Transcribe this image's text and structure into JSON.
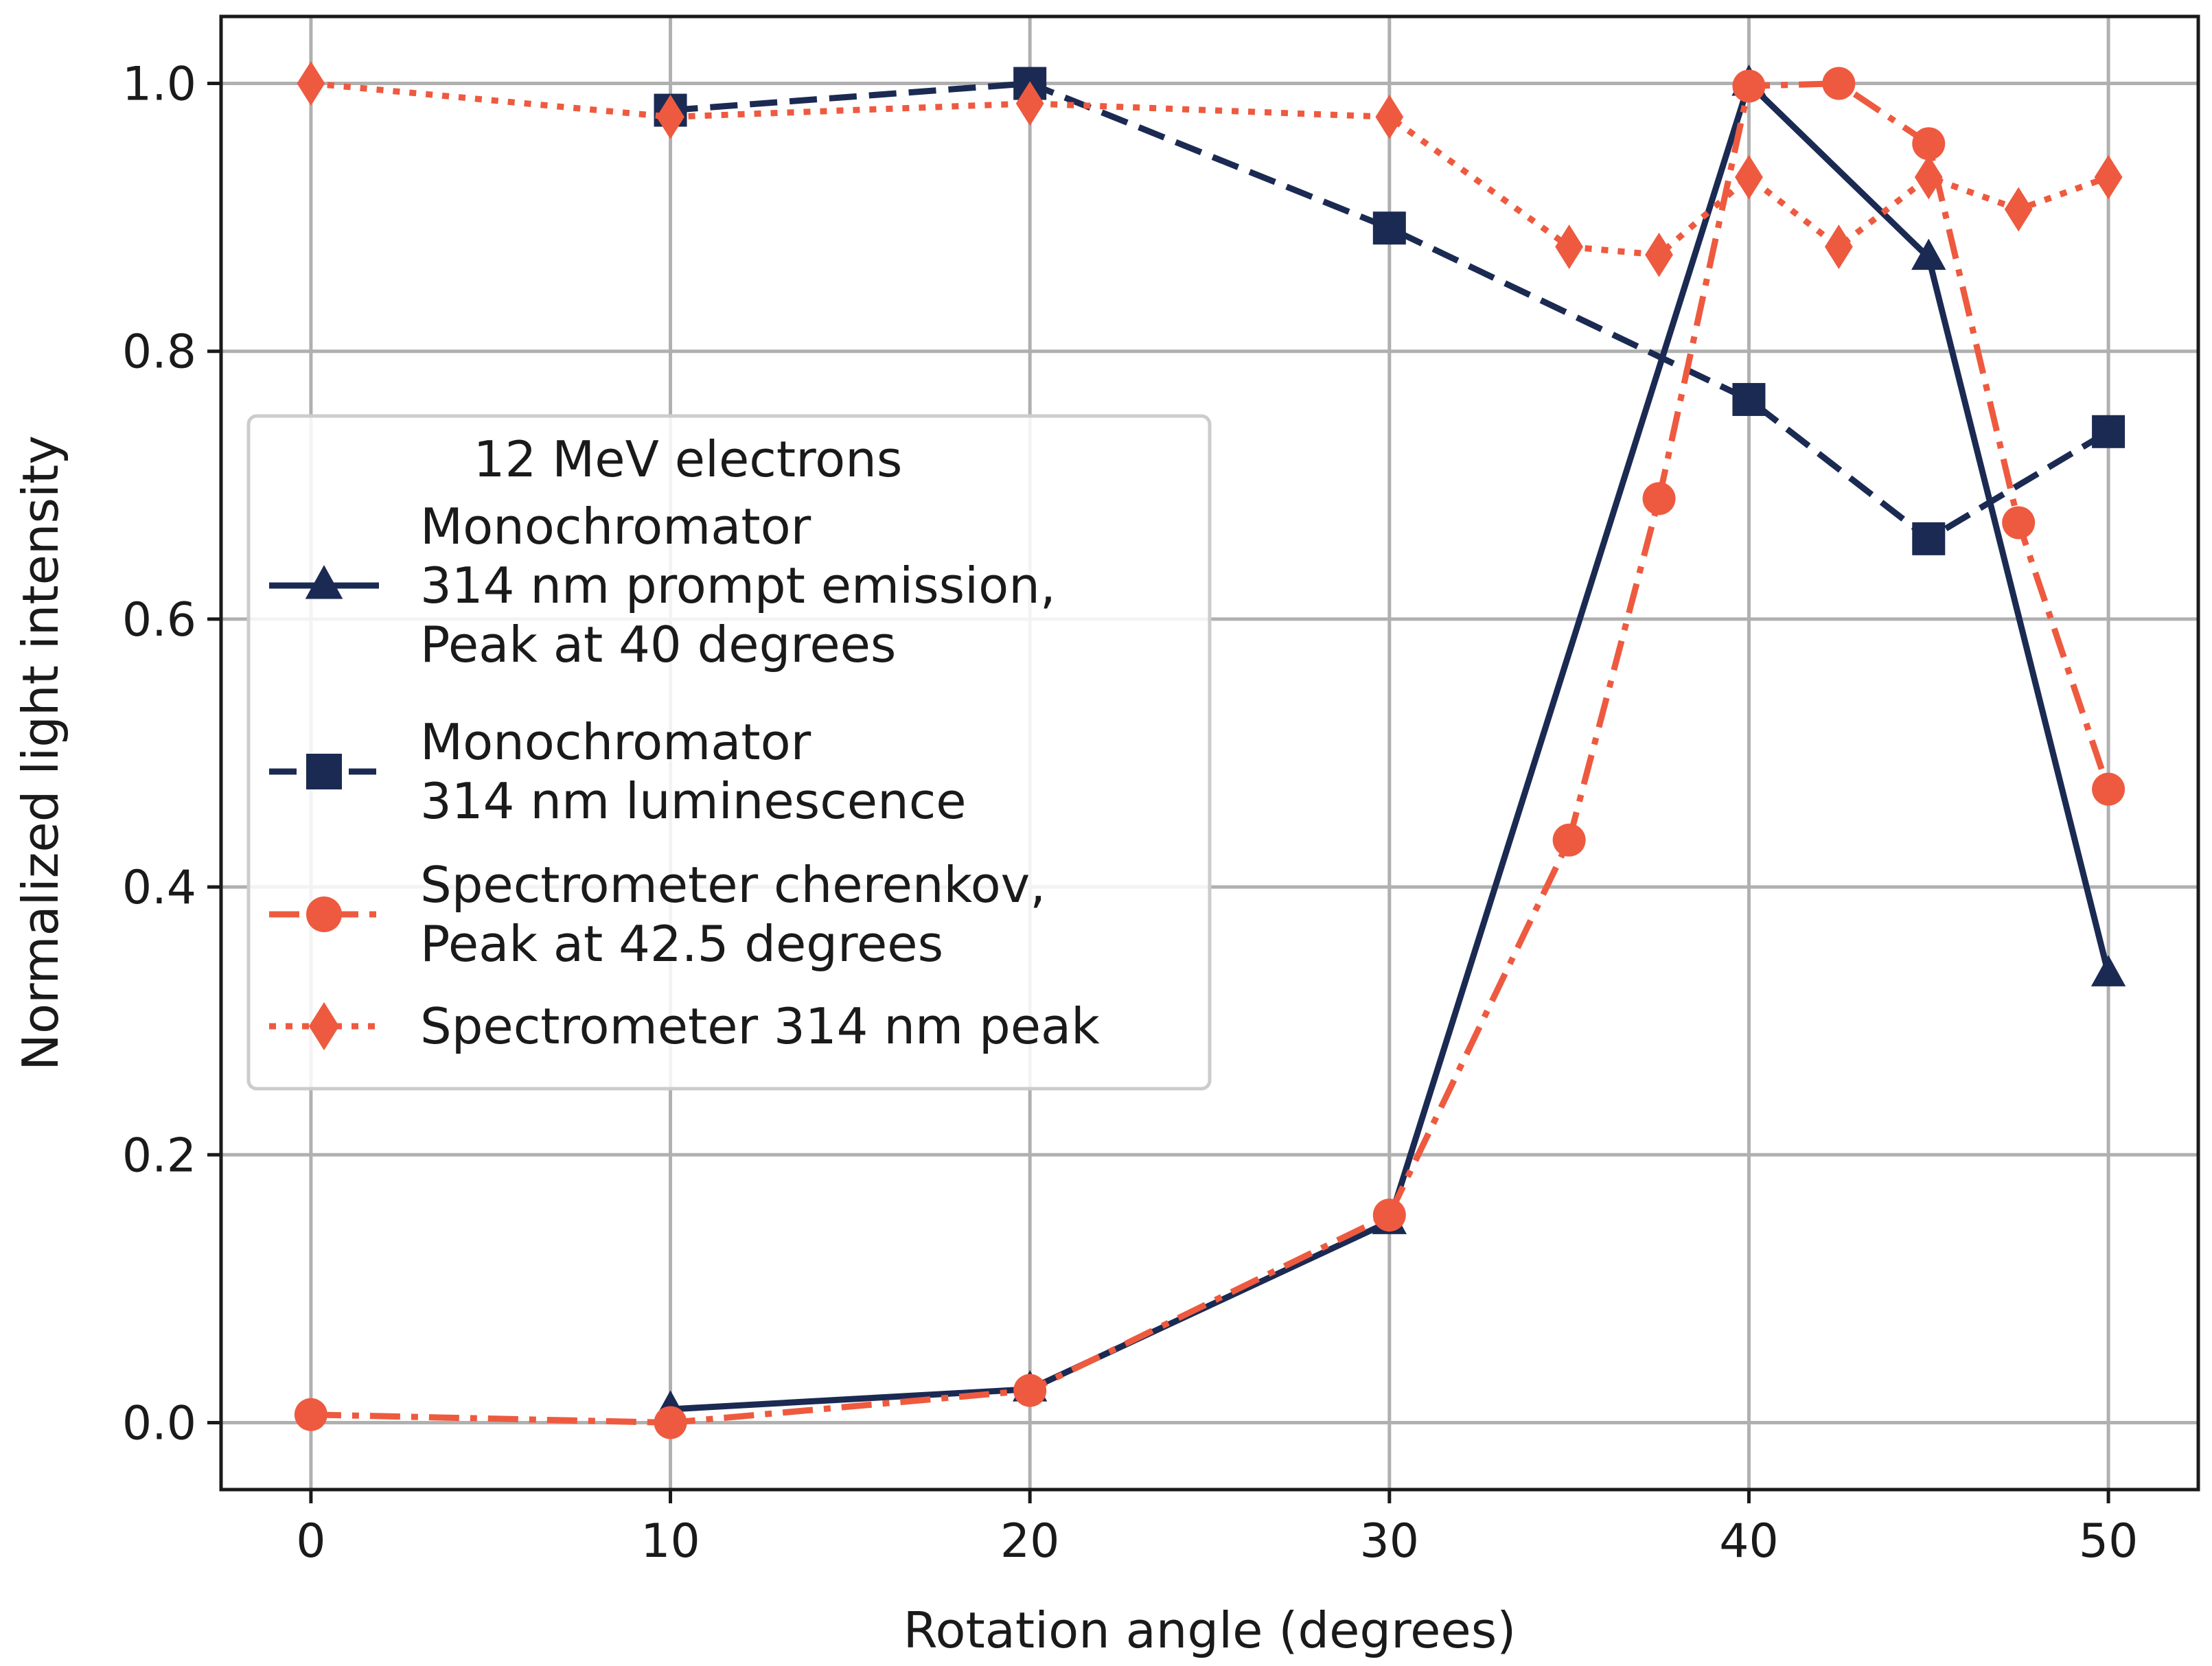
{
  "chart_data": {
    "type": "line",
    "title": "",
    "xlabel": "Rotation angle (degrees)",
    "ylabel": "Normalized light intensity",
    "xlim": [
      -2.5,
      52.5
    ],
    "ylim": [
      -0.05,
      1.05
    ],
    "xticks": [
      0,
      10,
      20,
      30,
      40,
      50
    ],
    "xtick_labels": [
      "0",
      "10",
      "20",
      "30",
      "40",
      "50"
    ],
    "yticks": [
      0.0,
      0.2,
      0.4,
      0.6,
      0.8,
      1.0
    ],
    "ytick_labels": [
      "0.0",
      "0.2",
      "0.4",
      "0.6",
      "0.8",
      "1.0"
    ],
    "grid": true,
    "legend": {
      "title": "12 MeV electrons",
      "location": "center-left"
    },
    "series": [
      {
        "name": "Monochromator\n314 nm prompt emission,\nPeak at 40 degrees",
        "color": "#1b2a52",
        "linestyle": "solid",
        "marker": "triangle",
        "x": [
          10,
          20,
          30,
          40,
          45,
          50
        ],
        "y": [
          0.01,
          0.025,
          0.15,
          1.0,
          0.87,
          0.335
        ]
      },
      {
        "name": "Monochromator\n314 nm luminescence",
        "color": "#1b2a52",
        "linestyle": "dashed",
        "marker": "square",
        "x": [
          10,
          20,
          30,
          40,
          45,
          50
        ],
        "y": [
          0.98,
          1.0,
          0.892,
          0.764,
          0.66,
          0.74
        ]
      },
      {
        "name": "Spectrometer cherenkov,\nPeak at 42.5 degrees",
        "color": "#ee5a3f",
        "linestyle": "dashdot",
        "marker": "circle",
        "x": [
          0,
          10,
          20,
          30,
          35,
          37.5,
          40,
          42.5,
          45,
          47.5,
          50
        ],
        "y": [
          0.006,
          0.0,
          0.024,
          0.155,
          0.435,
          0.69,
          0.998,
          1.0,
          0.955,
          0.672,
          0.473
        ]
      },
      {
        "name": "Spectrometer 314 nm peak",
        "color": "#ee5a3f",
        "linestyle": "dotted",
        "marker": "diamond",
        "x": [
          0,
          10,
          20,
          30,
          35,
          37.5,
          40,
          42.5,
          45,
          47.5,
          50
        ],
        "y": [
          1.0,
          0.975,
          0.985,
          0.975,
          0.878,
          0.872,
          0.93,
          0.878,
          0.93,
          0.906,
          0.93
        ]
      }
    ]
  }
}
